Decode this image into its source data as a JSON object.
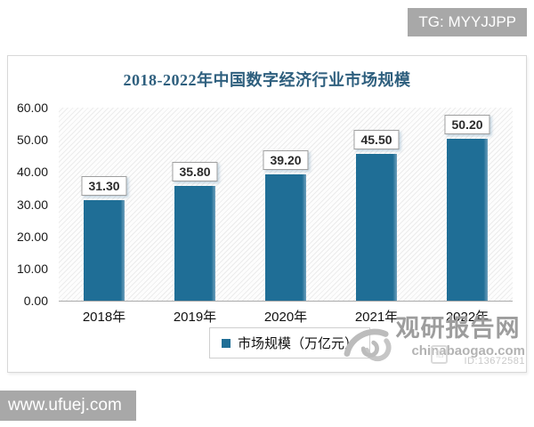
{
  "badges": {
    "telegram": "TG: MYYJJPP",
    "website": "www.ufuej.com"
  },
  "chart_data": {
    "type": "bar",
    "title": "2018-2022年中国数字经济行业市场规模",
    "categories": [
      "2018年",
      "2019年",
      "2020年",
      "2021年",
      "2022年"
    ],
    "values": [
      31.3,
      35.8,
      39.2,
      45.5,
      50.2
    ],
    "value_labels": [
      "31.30",
      "35.80",
      "39.20",
      "45.50",
      "50.20"
    ],
    "legend": "市场规模（万亿元）",
    "legend_position": "bottom",
    "y_ticks": [
      "60.00",
      "50.00",
      "40.00",
      "30.00",
      "20.00",
      "10.00",
      "0.00"
    ],
    "ylim": [
      0,
      60
    ],
    "grid": false,
    "bar_color": "#1F6E96",
    "bar_edge_color": "#6FA0BC",
    "title_color": "#2E5F7E"
  },
  "watermark": {
    "site_name": "观研报告网",
    "site_url": "chinabaogao.com",
    "id_text": "ID:13672581"
  }
}
